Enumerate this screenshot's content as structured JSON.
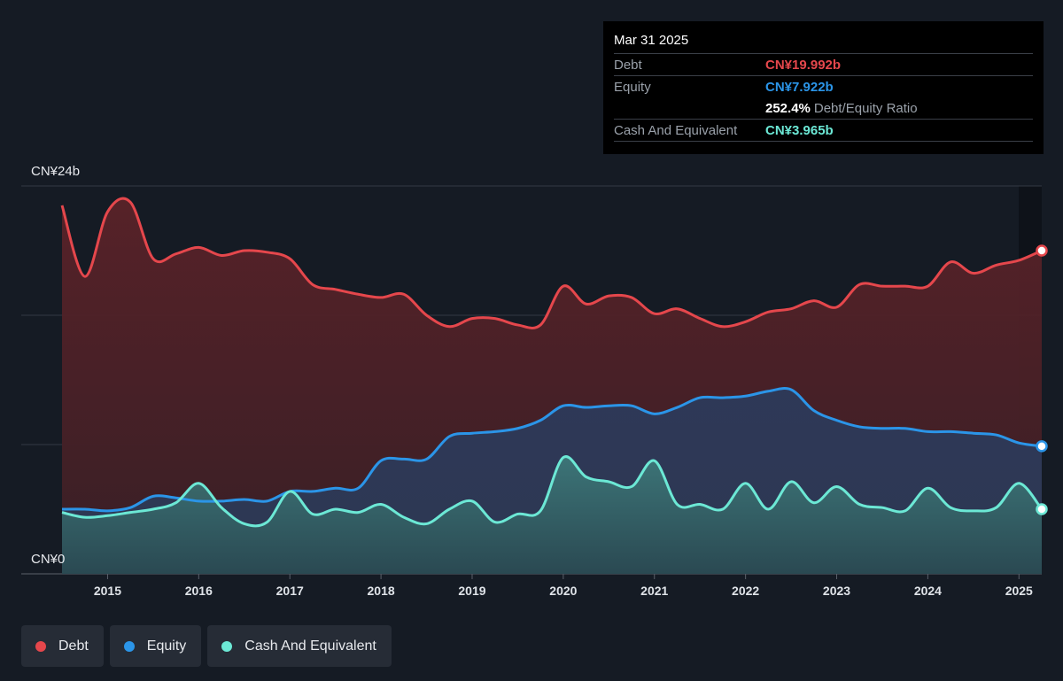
{
  "tooltip": {
    "date": "Mar 31 2025",
    "debt_label": "Debt",
    "debt_value": "CN¥19.992b",
    "equity_label": "Equity",
    "equity_value": "CN¥7.922b",
    "ratio_value": "252.4%",
    "ratio_label": "Debt/Equity Ratio",
    "cash_label": "Cash And Equivalent",
    "cash_value": "CN¥3.965b"
  },
  "legend": [
    {
      "label": "Debt",
      "color": "#e5474c"
    },
    {
      "label": "Equity",
      "color": "#2b95e8"
    },
    {
      "label": "Cash And Equivalent",
      "color": "#6ce8d5"
    }
  ],
  "chart_data": {
    "type": "area",
    "y_top_label": "CN¥24b",
    "y_bottom_label": "CN¥0",
    "ylim": [
      0,
      24
    ],
    "xlim": [
      2014.5,
      2025.25
    ],
    "x_ticks": [
      "2015",
      "2016",
      "2017",
      "2018",
      "2019",
      "2020",
      "2021",
      "2022",
      "2023",
      "2024",
      "2025"
    ],
    "colors": {
      "debt": "#e5474c",
      "equity": "#2b95e8",
      "cash": "#6ce8d5"
    },
    "series": [
      {
        "name": "Debt",
        "x": [
          2014.5,
          2014.75,
          2015.0,
          2015.25,
          2015.5,
          2015.75,
          2016.0,
          2016.25,
          2016.5,
          2016.75,
          2017.0,
          2017.25,
          2017.5,
          2017.75,
          2018.0,
          2018.25,
          2018.5,
          2018.75,
          2019.0,
          2019.25,
          2019.5,
          2019.75,
          2020.0,
          2020.25,
          2020.5,
          2020.75,
          2021.0,
          2021.25,
          2021.5,
          2021.75,
          2022.0,
          2022.25,
          2022.5,
          2022.75,
          2023.0,
          2023.25,
          2023.5,
          2023.75,
          2024.0,
          2024.25,
          2024.5,
          2024.75,
          2025.0,
          2025.25
        ],
        "values": [
          22.8,
          18.4,
          22.4,
          23.0,
          19.5,
          19.8,
          20.2,
          19.7,
          20.0,
          19.9,
          19.5,
          17.9,
          17.6,
          17.3,
          17.1,
          17.3,
          16.0,
          15.3,
          15.8,
          15.8,
          15.4,
          15.4,
          17.8,
          16.7,
          17.2,
          17.1,
          16.1,
          16.4,
          15.8,
          15.3,
          15.6,
          16.2,
          16.4,
          16.9,
          16.5,
          17.9,
          17.8,
          17.8,
          17.8,
          19.3,
          18.6,
          19.1,
          19.4,
          20.0
        ]
      },
      {
        "name": "Equity",
        "x": [
          2014.5,
          2014.75,
          2015.0,
          2015.25,
          2015.5,
          2015.75,
          2016.0,
          2016.25,
          2016.5,
          2016.75,
          2017.0,
          2017.25,
          2017.5,
          2017.75,
          2018.0,
          2018.25,
          2018.5,
          2018.75,
          2019.0,
          2019.25,
          2019.5,
          2019.75,
          2020.0,
          2020.25,
          2020.5,
          2020.75,
          2021.0,
          2021.25,
          2021.5,
          2021.75,
          2022.0,
          2022.25,
          2022.5,
          2022.75,
          2023.0,
          2023.25,
          2023.5,
          2023.75,
          2024.0,
          2024.25,
          2024.5,
          2024.75,
          2025.0,
          2025.25
        ],
        "values": [
          4.0,
          4.0,
          3.9,
          4.1,
          4.8,
          4.7,
          4.5,
          4.5,
          4.6,
          4.5,
          5.1,
          5.1,
          5.3,
          5.3,
          7.0,
          7.1,
          7.1,
          8.5,
          8.7,
          8.8,
          9.0,
          9.5,
          10.4,
          10.3,
          10.4,
          10.4,
          9.9,
          10.3,
          10.9,
          10.9,
          11.0,
          11.3,
          11.4,
          10.1,
          9.5,
          9.1,
          9.0,
          9.0,
          8.8,
          8.8,
          8.7,
          8.6,
          8.1,
          7.9
        ]
      },
      {
        "name": "Cash And Equivalent",
        "x": [
          2014.5,
          2014.75,
          2015.0,
          2015.25,
          2015.5,
          2015.75,
          2016.0,
          2016.25,
          2016.5,
          2016.75,
          2017.0,
          2017.25,
          2017.5,
          2017.75,
          2018.0,
          2018.25,
          2018.5,
          2018.75,
          2019.0,
          2019.25,
          2019.5,
          2019.75,
          2020.0,
          2020.25,
          2020.5,
          2020.75,
          2021.0,
          2021.25,
          2021.5,
          2021.75,
          2022.0,
          2022.25,
          2022.5,
          2022.75,
          2023.0,
          2023.25,
          2023.5,
          2023.75,
          2024.0,
          2024.25,
          2024.5,
          2024.75,
          2025.0,
          2025.25
        ],
        "values": [
          3.8,
          3.5,
          3.6,
          3.8,
          4.0,
          4.4,
          5.6,
          4.1,
          3.1,
          3.2,
          5.1,
          3.7,
          4.0,
          3.8,
          4.3,
          3.5,
          3.1,
          4.0,
          4.5,
          3.2,
          3.7,
          3.9,
          7.2,
          6.0,
          5.7,
          5.4,
          7.0,
          4.3,
          4.3,
          4.0,
          5.6,
          4.0,
          5.7,
          4.4,
          5.4,
          4.3,
          4.1,
          3.9,
          5.3,
          4.1,
          3.9,
          4.1,
          5.6,
          4.0
        ]
      }
    ]
  }
}
